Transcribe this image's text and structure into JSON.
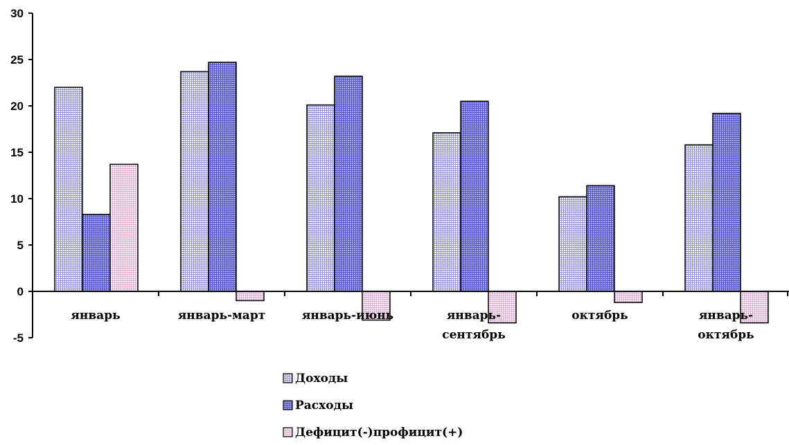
{
  "chart_data": {
    "type": "bar",
    "categories": [
      [
        "январь"
      ],
      [
        "январь-март"
      ],
      [
        "январь-июнь"
      ],
      [
        "январь-",
        "сентябрь"
      ],
      [
        "октябрь"
      ],
      [
        "январь-",
        "октябрь"
      ]
    ],
    "series": [
      {
        "name": "Доходы",
        "values": [
          22.0,
          23.7,
          20.1,
          17.1,
          10.2,
          15.8
        ],
        "color": "#dcdcf4",
        "pattern": "fine-grid"
      },
      {
        "name": "Расходы",
        "values": [
          8.3,
          24.7,
          23.2,
          20.5,
          11.4,
          19.2
        ],
        "color": "#8c8ce6",
        "pattern": "fine-grid"
      },
      {
        "name": "Дефицит(-)профицит(+)",
        "values": [
          13.7,
          -1.0,
          -3.1,
          -3.4,
          -1.2,
          -3.4
        ],
        "color": "#f0dcec",
        "pattern": "fine-grid"
      }
    ],
    "yticks": [
      "30",
      "25",
      "20",
      "15",
      "10",
      "5",
      "0",
      "-5"
    ],
    "ylim": [
      -5,
      30
    ],
    "legend_position": "bottom",
    "grid": false
  }
}
